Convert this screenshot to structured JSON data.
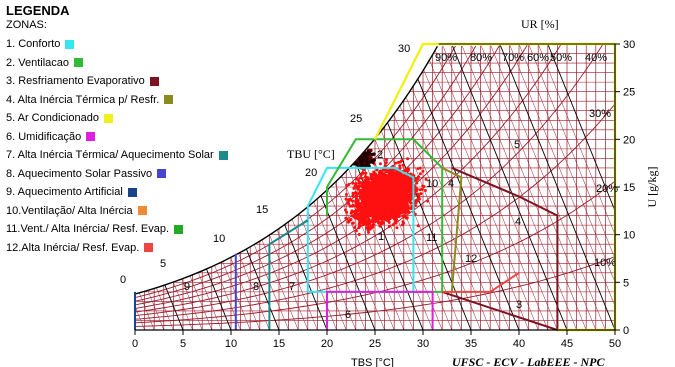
{
  "legend": {
    "title": "LEGENDA",
    "subtitle": "ZONAS:",
    "items": [
      {
        "label": "1. Conforto",
        "color": "#33e6f0"
      },
      {
        "label": "2. Ventilacao",
        "color": "#33bb33"
      },
      {
        "label": "3. Resfriamento Evaporativo",
        "color": "#7a1420"
      },
      {
        "label": "4. Alta Inércia Térmica p/ Resfr.",
        "color": "#8a8a1e"
      },
      {
        "label": "5. Ar Condicionado",
        "color": "#f0f01e"
      },
      {
        "label": "6. Umidificação",
        "color": "#e01ee0"
      },
      {
        "label": "7. Alta Inércia Térmica/ Aquecimento Solar",
        "color": "#1a8a8a"
      },
      {
        "label": "8. Aquecimento Solar Passivo",
        "color": "#4444cc"
      },
      {
        "label": "9. Aquecimento Artificial",
        "color": "#1a4488"
      },
      {
        "label": "10.Ventilação/ Alta Inércia",
        "color": "#f08a33"
      },
      {
        "label": "11.Vent./ Alta Inércia/ Resf. Evap.",
        "color": "#22aa22"
      },
      {
        "label": "12.Alta Inércia/ Resf. Evap.",
        "color": "#ee4444"
      }
    ]
  },
  "chart_data": {
    "type": "scatter",
    "xlabel": "TBS [°C]",
    "ylabel": "U [g/kg]",
    "ur_label": "UR [%]",
    "tbu_label": "TBU [°C]",
    "credit": "UFSC - ECV - LabEEE - NPC",
    "xlim": [
      0,
      50
    ],
    "ylim": [
      0,
      30
    ],
    "x_ticks": [
      "0",
      "5",
      "10",
      "15",
      "20",
      "25",
      "30",
      "35",
      "40",
      "45",
      "50"
    ],
    "y_ticks": [
      "0",
      "5",
      "10",
      "15",
      "20",
      "25",
      "30"
    ],
    "ur_labels": [
      "90%",
      "80%",
      "70%",
      "60%",
      "50%",
      "40%",
      "30%",
      "20%",
      "10%"
    ],
    "tbu_labels": [
      "0",
      "5",
      "10",
      "15",
      "20",
      "25",
      "30"
    ],
    "enthalpy_labels": [
      "3",
      "4",
      "5"
    ],
    "zone_labels": [
      "1",
      "2",
      "6",
      "7",
      "8",
      "9",
      "10",
      "11",
      "12",
      "4"
    ],
    "point_cloud": {
      "description_center": {
        "x": 26,
        "y": 15
      },
      "x_range": [
        18,
        37
      ],
      "y_range": [
        8,
        21
      ]
    }
  }
}
